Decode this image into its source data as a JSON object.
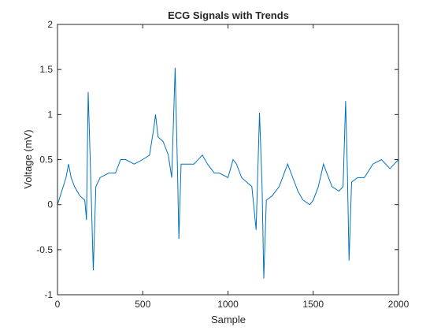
{
  "chart_data": {
    "type": "line",
    "title": "ECG Signals with Trends",
    "xlabel": "Sample",
    "ylabel": "Voltage (mV)",
    "xlim": [
      0,
      2000
    ],
    "xticks": [
      0,
      500,
      1000,
      1500,
      2000
    ],
    "ylim": [
      -1,
      2
    ],
    "yticks": [
      -1,
      -0.5,
      0,
      0.5,
      1,
      1.5,
      2
    ],
    "x": [
      0,
      50,
      65,
      80,
      100,
      130,
      160,
      170,
      180,
      195,
      210,
      225,
      250,
      300,
      340,
      370,
      400,
      450,
      500,
      540,
      565,
      575,
      590,
      620,
      650,
      670,
      690,
      705,
      712,
      725,
      760,
      800,
      850,
      880,
      920,
      950,
      1000,
      1030,
      1050,
      1080,
      1110,
      1140,
      1165,
      1185,
      1200,
      1210,
      1225,
      1260,
      1300,
      1330,
      1350,
      1380,
      1410,
      1440,
      1480,
      1500,
      1530,
      1560,
      1580,
      1610,
      1650,
      1675,
      1690,
      1700,
      1710,
      1725,
      1760,
      1800,
      1850,
      1900,
      1950,
      2000
    ],
    "series": [
      {
        "name": "ECG",
        "color": "#0072bd",
        "values": [
          0.0,
          0.3,
          0.45,
          0.3,
          0.2,
          0.1,
          0.05,
          -0.17,
          1.25,
          0.3,
          -0.73,
          0.2,
          0.3,
          0.35,
          0.35,
          0.5,
          0.5,
          0.45,
          0.5,
          0.55,
          0.85,
          1.0,
          0.75,
          0.7,
          0.55,
          0.3,
          1.52,
          0.3,
          -0.38,
          0.45,
          0.45,
          0.45,
          0.55,
          0.45,
          0.35,
          0.35,
          0.3,
          0.5,
          0.45,
          0.3,
          0.25,
          0.2,
          -0.28,
          1.02,
          0.2,
          -0.82,
          0.05,
          0.1,
          0.2,
          0.35,
          0.45,
          0.3,
          0.15,
          0.05,
          0.0,
          0.05,
          0.2,
          0.45,
          0.35,
          0.2,
          0.15,
          0.2,
          1.15,
          0.4,
          -0.62,
          0.25,
          0.3,
          0.3,
          0.45,
          0.5,
          0.4,
          0.5
        ]
      }
    ]
  }
}
